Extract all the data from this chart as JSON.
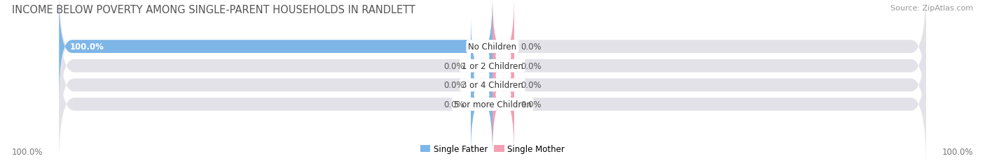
{
  "title": "INCOME BELOW POVERTY AMONG SINGLE-PARENT HOUSEHOLDS IN RANDLETT",
  "source": "Source: ZipAtlas.com",
  "categories": [
    "No Children",
    "1 or 2 Children",
    "3 or 4 Children",
    "5 or more Children"
  ],
  "single_father": [
    100.0,
    0.0,
    0.0,
    0.0
  ],
  "single_mother": [
    0.0,
    0.0,
    0.0,
    0.0
  ],
  "father_color": "#7EB6E8",
  "mother_color": "#F4A0B4",
  "bar_bg_color": "#E2E2E8",
  "background_color": "#FFFFFF",
  "title_fontsize": 10.5,
  "label_fontsize": 8.5,
  "tick_fontsize": 8.5,
  "source_fontsize": 8,
  "axis_label_left": "100.0%",
  "axis_label_right": "100.0%",
  "min_bar_display": 5.0,
  "xlim_left": -100,
  "xlim_right": 100
}
